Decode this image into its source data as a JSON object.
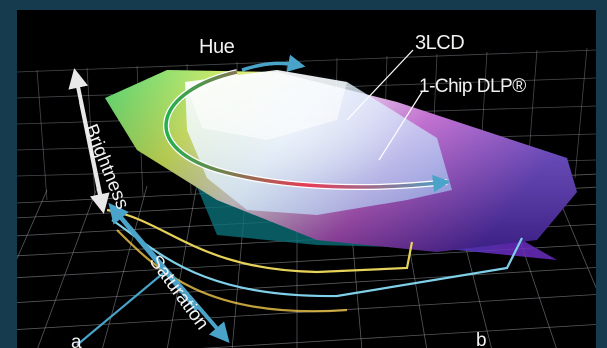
{
  "diagram": {
    "labels": {
      "hue": "Hue",
      "lcd": "3LCD",
      "dlp": "1-Chip DLP®",
      "brightness": "Brightness",
      "saturation": "Saturation",
      "corner_a": "a",
      "corner_b": "b"
    },
    "colors": {
      "background": "#000000",
      "frame": "#163a4e",
      "grid": "#9aa0a6",
      "arrow": "#4aa3c9",
      "brightness_arrow": "#e8e8e8",
      "lcd_volume": "#f0f0f0",
      "dlp_volume": "#8a3fc7"
    },
    "icons": [
      "hue-arrow-icon",
      "brightness-arrow-icon",
      "saturation-arrow-icon"
    ]
  }
}
